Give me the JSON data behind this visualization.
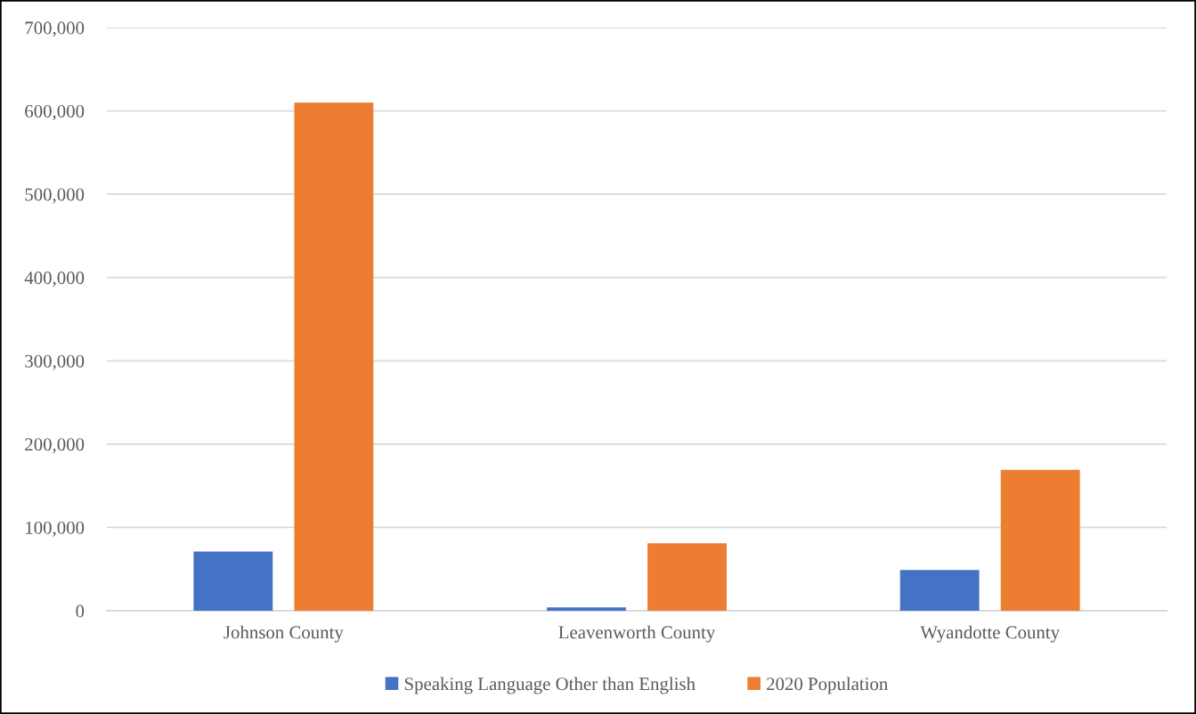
{
  "chart_data": {
    "type": "bar",
    "categories": [
      "Johnson County",
      "Leavenworth County",
      "Wyandotte County"
    ],
    "series": [
      {
        "name": "Speaking Language Other than English",
        "color": "#4472c4",
        "values": [
          71000,
          4000,
          49000
        ]
      },
      {
        "name": "2020 Population",
        "color": "#ed7d31",
        "values": [
          610000,
          81000,
          169000
        ]
      }
    ],
    "ylim": [
      0,
      700000
    ],
    "yticks": [
      0,
      {
        "value": 100000,
        "label": "100,000"
      },
      {
        "value": 200000,
        "label": "200,000"
      },
      {
        "value": 300000,
        "label": "300,000"
      },
      {
        "value": 400000,
        "label": "400,000"
      },
      {
        "value": 500000,
        "label": "500,000"
      },
      {
        "value": 600000,
        "label": "600,000"
      },
      {
        "value": 700000,
        "label": "700,000"
      }
    ],
    "grid": "y",
    "legend": "bottom"
  }
}
